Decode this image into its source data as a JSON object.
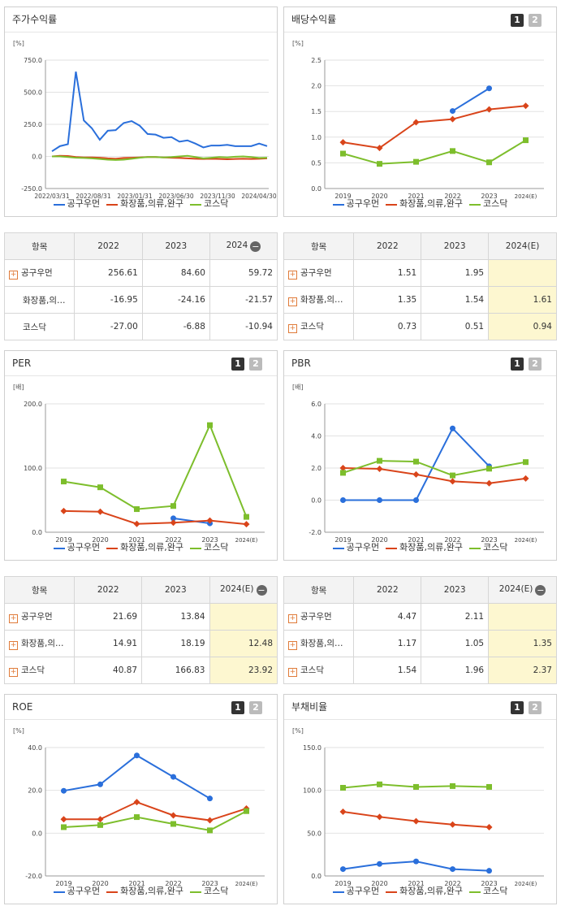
{
  "colors": {
    "company": "#2a6fdb",
    "industry": "#d9441a",
    "kosdaq": "#7dbe2c"
  },
  "legend": {
    "company": "공구우먼",
    "industry": "화장품,의류,완구",
    "kosdaq": "코스닥"
  },
  "panels": {
    "stock": {
      "title": "주가수익률"
    },
    "dividend": {
      "title": "배당수익률",
      "btn1": "1",
      "btn2": "2"
    },
    "per": {
      "title": "PER",
      "btn1": "1",
      "btn2": "2"
    },
    "pbr": {
      "title": "PBR",
      "btn1": "1",
      "btn2": "2"
    },
    "roe": {
      "title": "ROE",
      "btn1": "1",
      "btn2": "2"
    },
    "debt": {
      "title": "부채비율",
      "btn1": "1",
      "btn2": "2"
    }
  },
  "tables": {
    "stock": {
      "headers": [
        "항목",
        "2022",
        "2023",
        "2024"
      ],
      "rows": [
        {
          "name": "공구우먼",
          "v": [
            "256.61",
            "84.60",
            "59.72"
          ]
        },
        {
          "name": "화장품,의…",
          "v": [
            "-16.95",
            "-24.16",
            "-21.57"
          ]
        },
        {
          "name": "코스닥",
          "v": [
            "-27.00",
            "-6.88",
            "-10.94"
          ]
        }
      ]
    },
    "dividend": {
      "headers": [
        "항목",
        "2022",
        "2023",
        "2024(E)"
      ],
      "rows": [
        {
          "name": "공구우먼",
          "v": [
            "1.51",
            "1.95",
            ""
          ]
        },
        {
          "name": "화장품,의…",
          "v": [
            "1.35",
            "1.54",
            "1.61"
          ]
        },
        {
          "name": "코스닥",
          "v": [
            "0.73",
            "0.51",
            "0.94"
          ]
        }
      ]
    },
    "per": {
      "headers": [
        "항목",
        "2022",
        "2023",
        "2024(E)"
      ],
      "rows": [
        {
          "name": "공구우먼",
          "v": [
            "21.69",
            "13.84",
            ""
          ]
        },
        {
          "name": "화장품,의…",
          "v": [
            "14.91",
            "18.19",
            "12.48"
          ]
        },
        {
          "name": "코스닥",
          "v": [
            "40.87",
            "166.83",
            "23.92"
          ]
        }
      ]
    },
    "pbr": {
      "headers": [
        "항목",
        "2022",
        "2023",
        "2024(E)"
      ],
      "rows": [
        {
          "name": "공구우먼",
          "v": [
            "4.47",
            "2.11",
            ""
          ]
        },
        {
          "name": "화장품,의…",
          "v": [
            "1.17",
            "1.05",
            "1.35"
          ]
        },
        {
          "name": "코스닥",
          "v": [
            "1.54",
            "1.96",
            "2.37"
          ]
        }
      ]
    }
  },
  "chart_data": [
    {
      "id": "stock",
      "type": "line",
      "ylabel": "[%]",
      "ylim": [
        -250,
        750
      ],
      "yticks": [
        "750.0",
        "500.0",
        "250.0",
        "0.0",
        "-250.0"
      ],
      "xticks": [
        "2022/03/31",
        "2022/08/31",
        "2023/01/31",
        "2023/06/30",
        "2023/11/30",
        "2024/04/30"
      ],
      "series": [
        {
          "name": "공구우먼",
          "key": "company",
          "values": [
            40,
            80,
            95,
            660,
            280,
            220,
            130,
            200,
            205,
            260,
            275,
            240,
            175,
            170,
            145,
            150,
            115,
            125,
            100,
            70,
            85,
            85,
            90,
            80,
            80,
            80,
            100,
            80
          ]
        },
        {
          "name": "화장품,의류,완구",
          "key": "industry",
          "values": [
            0,
            5,
            3,
            -5,
            -8,
            -8,
            -10,
            -15,
            -18,
            -12,
            -10,
            -8,
            -5,
            -5,
            -8,
            -10,
            -12,
            -15,
            -18,
            -20,
            -18,
            -20,
            -22,
            -20,
            -18,
            -20,
            -18,
            -15
          ]
        },
        {
          "name": "코스닥",
          "key": "kosdaq",
          "values": [
            0,
            0,
            -5,
            -10,
            -12,
            -15,
            -20,
            -25,
            -28,
            -25,
            -18,
            -10,
            -5,
            -5,
            -8,
            -5,
            0,
            5,
            -5,
            -15,
            -10,
            -5,
            -8,
            -2,
            0,
            -5,
            -12,
            -10
          ]
        }
      ]
    },
    {
      "id": "dividend",
      "type": "line",
      "ylabel": "[%]",
      "ylim": [
        0,
        2.5
      ],
      "yticks": [
        "2.5",
        "2.0",
        "1.5",
        "1.0",
        "0.5",
        "0.0"
      ],
      "categories": [
        "2019",
        "2020",
        "2021",
        "2022",
        "2023",
        "2024(E)"
      ],
      "series": [
        {
          "name": "공구우먼",
          "key": "company",
          "values": [
            null,
            null,
            null,
            1.51,
            1.95,
            null
          ]
        },
        {
          "name": "화장품,의류,완구",
          "key": "industry",
          "values": [
            0.9,
            0.79,
            1.29,
            1.35,
            1.54,
            1.61
          ]
        },
        {
          "name": "코스닥",
          "key": "kosdaq",
          "values": [
            0.68,
            0.48,
            0.52,
            0.73,
            0.51,
            0.94
          ]
        }
      ]
    },
    {
      "id": "per",
      "type": "line",
      "ylabel": "[배]",
      "ylim": [
        0,
        200
      ],
      "yticks": [
        "200.0",
        "100.0",
        "0.0"
      ],
      "categories": [
        "2019",
        "2020",
        "2021",
        "2022",
        "2023",
        "2024(E)"
      ],
      "series": [
        {
          "name": "공구우먼",
          "key": "company",
          "values": [
            null,
            null,
            null,
            21.69,
            13.84,
            null
          ]
        },
        {
          "name": "화장품,의류,완구",
          "key": "industry",
          "values": [
            33,
            32,
            13,
            14.91,
            18.19,
            12.48
          ]
        },
        {
          "name": "코스닥",
          "key": "kosdaq",
          "values": [
            79,
            70,
            36,
            40.87,
            166.83,
            23.92
          ]
        }
      ]
    },
    {
      "id": "pbr",
      "type": "line",
      "ylabel": "[배]",
      "ylim": [
        -2,
        6
      ],
      "yticks": [
        "6.0",
        "4.0",
        "2.0",
        "0.0",
        "-2.0"
      ],
      "categories": [
        "2019",
        "2020",
        "2021",
        "2022",
        "2023",
        "2024(E)"
      ],
      "series": [
        {
          "name": "공구우먼",
          "key": "company",
          "values": [
            0,
            0,
            0,
            4.47,
            2.11,
            null
          ]
        },
        {
          "name": "화장품,의류,완구",
          "key": "industry",
          "values": [
            2.0,
            1.95,
            1.6,
            1.17,
            1.05,
            1.35
          ]
        },
        {
          "name": "코스닥",
          "key": "kosdaq",
          "values": [
            1.7,
            2.45,
            2.4,
            1.54,
            1.96,
            2.37
          ]
        }
      ]
    },
    {
      "id": "roe",
      "type": "line",
      "ylabel": "[%]",
      "ylim": [
        -20,
        40
      ],
      "yticks": [
        "40.0",
        "20.0",
        "0.0",
        "-20.0"
      ],
      "categories": [
        "2019",
        "2020",
        "2021",
        "2022",
        "2023",
        "2024(E)"
      ],
      "series": [
        {
          "name": "공구우먼",
          "key": "company",
          "values": [
            19.8,
            22.8,
            36.3,
            26.3,
            16.2,
            null
          ]
        },
        {
          "name": "화장품,의류,완구",
          "key": "industry",
          "values": [
            6.5,
            6.5,
            14.5,
            8.3,
            6.0,
            11.5
          ]
        },
        {
          "name": "코스닥",
          "key": "kosdaq",
          "values": [
            2.8,
            3.8,
            7.5,
            4.3,
            1.3,
            10.3
          ]
        }
      ]
    },
    {
      "id": "debt",
      "type": "line",
      "ylabel": "[%]",
      "ylim": [
        0,
        150
      ],
      "yticks": [
        "150.0",
        "100.0",
        "50.0",
        "0.0"
      ],
      "categories": [
        "2019",
        "2020",
        "2021",
        "2022",
        "2023",
        "2024(E)"
      ],
      "series": [
        {
          "name": "공구우먼",
          "key": "company",
          "values": [
            8,
            14,
            17,
            8,
            6,
            null
          ]
        },
        {
          "name": "화장품,의류,완구",
          "key": "industry",
          "values": [
            75,
            69,
            64,
            60,
            57,
            null
          ]
        },
        {
          "name": "코스닥",
          "key": "kosdaq",
          "values": [
            103,
            107,
            104,
            105,
            104,
            null
          ]
        }
      ]
    }
  ]
}
